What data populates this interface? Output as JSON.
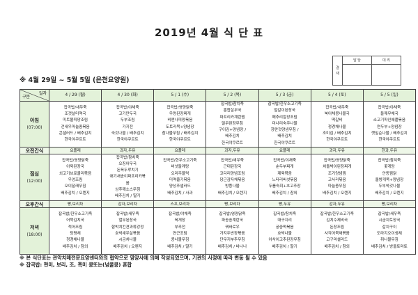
{
  "title": "2019년 4월 식 단 표",
  "approval": {
    "label": "결재",
    "cols": [
      "담 당",
      "대 리"
    ]
  },
  "subtitle": "※ 4월 29일 ~ 5월 5일 (은천요양원)",
  "corner": {
    "top": "일자",
    "bottom": "구분"
  },
  "days": [
    "4 / 29 (월)",
    "4 / 30 (화)",
    "5 / 1 (수)",
    "5 / 2 (목)",
    "5 / 3 (금)",
    "5 / 4 (토)",
    "5 / 5 (일)"
  ],
  "rows": [
    {
      "label": "아침",
      "time": "(07:00)",
      "type": "meal",
      "cells": [
        [
          "잡곡밥/새우죽",
          "조갯살미역국",
          "미트볼피망조림",
          "건새우마늘종볶음",
          "콘샐러드 / 배추김치",
          "한국야쿠르트"
        ],
        [
          "잡곡밥/야채죽",
          "고기만두국",
          "두부조림",
          "가지전",
          "숙갓나물 / 배추김치",
          "한국야쿠르트"
        ],
        [
          "잡곡밥/영양닭죽",
          "우렁된장찌개",
          "비엔나피망볶음",
          "도토리묵+양념장",
          "참나물무침 / 배추김치",
          "한국야쿠르트"
        ],
        [
          "잡곡밥/참치죽",
          "홍합살무국",
          "파프리카계란찜",
          "열무된장무침",
          "구이김+양념장 /",
          "배추김치",
          "한국야쿠르트"
        ],
        [
          "잡곡밥/한우소고기죽",
          "얼갈이된장국",
          "메추리알장조림",
          "미나리숙주나물",
          "창란젓양념무침 /",
          "배추김치",
          "한국야쿠르트"
        ],
        [
          "잡곡밥/새우죽",
          "북어채콩나물국",
          "떡갈비",
          "청경채나물",
          "조미김 / 배추김치",
          "한국야쿠르트"
        ],
        [
          "잡곡밥/야채죽",
          "들깨무채국",
          "소고기파인애플볶음",
          "연두부+양념장",
          "깻잎순나물 / 배추김치",
          "한국야쿠르트"
        ]
      ]
    },
    {
      "label": "오전간식",
      "type": "snack",
      "cells": [
        "요플레",
        "과자,두유",
        "요플레",
        "과자,두유",
        "요플레",
        "과자,두유",
        "한과,두유"
      ]
    },
    {
      "label": "점심",
      "time": "(12:00)",
      "type": "meal",
      "cells": [
        [
          "잡곡밥/영양닭죽",
          "아욱된장국",
          "쇠고기브로콜리볶음",
          "우엉조림",
          "오이달래무침",
          "배추김치 / 오렌지"
        ],
        [
          "잡곡밥/참치죽",
          "오징어무국",
          "돈육두루치기",
          "애기새송이파프리카볶",
          "음",
          "상추깨소스무침",
          "배추김치 / 딸기"
        ],
        [
          "잡곡밥/한우소고기죽",
          "버섯들깨탕",
          "오리주물럭",
          "미역줄기볶음",
          "양상추샐러드",
          "배추김치 / 사과"
        ],
        [
          "잡곡밥/새우죽",
          "근대된장국",
          "코다리양념조림",
          "당근감자채볶음",
          "방풍나물",
          "배추김치 / 오렌지"
        ],
        [
          "잡곡밥/야채죽",
          "순두부찌개",
          "제육볶음",
          "느타리버섯볶음",
          "두릅숙회+초고추장",
          "배추김치 / 참외"
        ],
        [
          "잡곡밥/영양닭죽",
          "차돌박이된장찌개",
          "조기양념찜",
          "고사리볶음",
          "마늘종무침",
          "배추김치 / 오렌지"
        ],
        [
          "잡곡밥/참치죽",
          "꽃게탕",
          "안동찜닭",
          "올방개묵+양념장",
          "두부쑥갓나물",
          "배추김치 / 오렌지"
        ]
      ]
    },
    {
      "label": "오후간식",
      "type": "snack",
      "cells": [
        "빵,보리차",
        "감자,보리차",
        "스프,보리차",
        "빵,보리차",
        "빵,두유",
        "감자,두유",
        "빵,보리차"
      ]
    },
    {
      "label": "저녁",
      "time": "(18:00)",
      "type": "meal",
      "cells": [
        [
          "잡곡밥/한우소고기죽",
          "어묵김치국",
          "적어조림",
          "탕평채",
          "청경채나물",
          "배추김치 / 참외"
        ],
        [
          "잡곡밥/새우죽",
          "열무된장국",
          "함박치킨견과류강정",
          "호박새우살볶음",
          "시금치나물",
          "배추김치 / 오렌지"
        ],
        [
          "잡곡밥/야채죽",
          "육개장",
          "부추전",
          "연근조림",
          "콩나물무침",
          "배추김치 / 딸기"
        ],
        [
          "잡곡밥/영양닭죽",
          "파송송계란국",
          "꿔바로우",
          "가지두반장볶음",
          "단무지부추무침",
          "배추김치 / 바나나"
        ],
        [
          "잡곡밥/참치죽",
          "대구지리",
          "궁중떡볶음",
          "호박나물",
          "아삭이고추된장무침",
          "배추김치 / 딸기"
        ],
        [
          "잡곡밥/한우소고기죽",
          "김치수제비국",
          "돈장조림",
          "사각어묵채볶음",
          "고구마샐러드",
          "배추김치 / 참외"
        ],
        [
          "잡곡밥/새우죽",
          "시금치토장국",
          "갈치구이",
          "도라지오이생채",
          "취나물무침",
          "배추김치 / 방울토마토"
        ]
      ]
    }
  ],
  "notes": [
    "※ 본 식단표는 관악치매전문요양센터와의 협약으로 영양사에 의해 작성되었으며, 기관의 사정에 따라 변동 될 수 있음",
    "※ 잡곡밥: 현미, 보리, 조, 흑미 콩또는(넝쿨콩) 혼합"
  ],
  "colors": {
    "header_bg": "#e3f2d9",
    "snack_bg": "#eef7e8"
  }
}
